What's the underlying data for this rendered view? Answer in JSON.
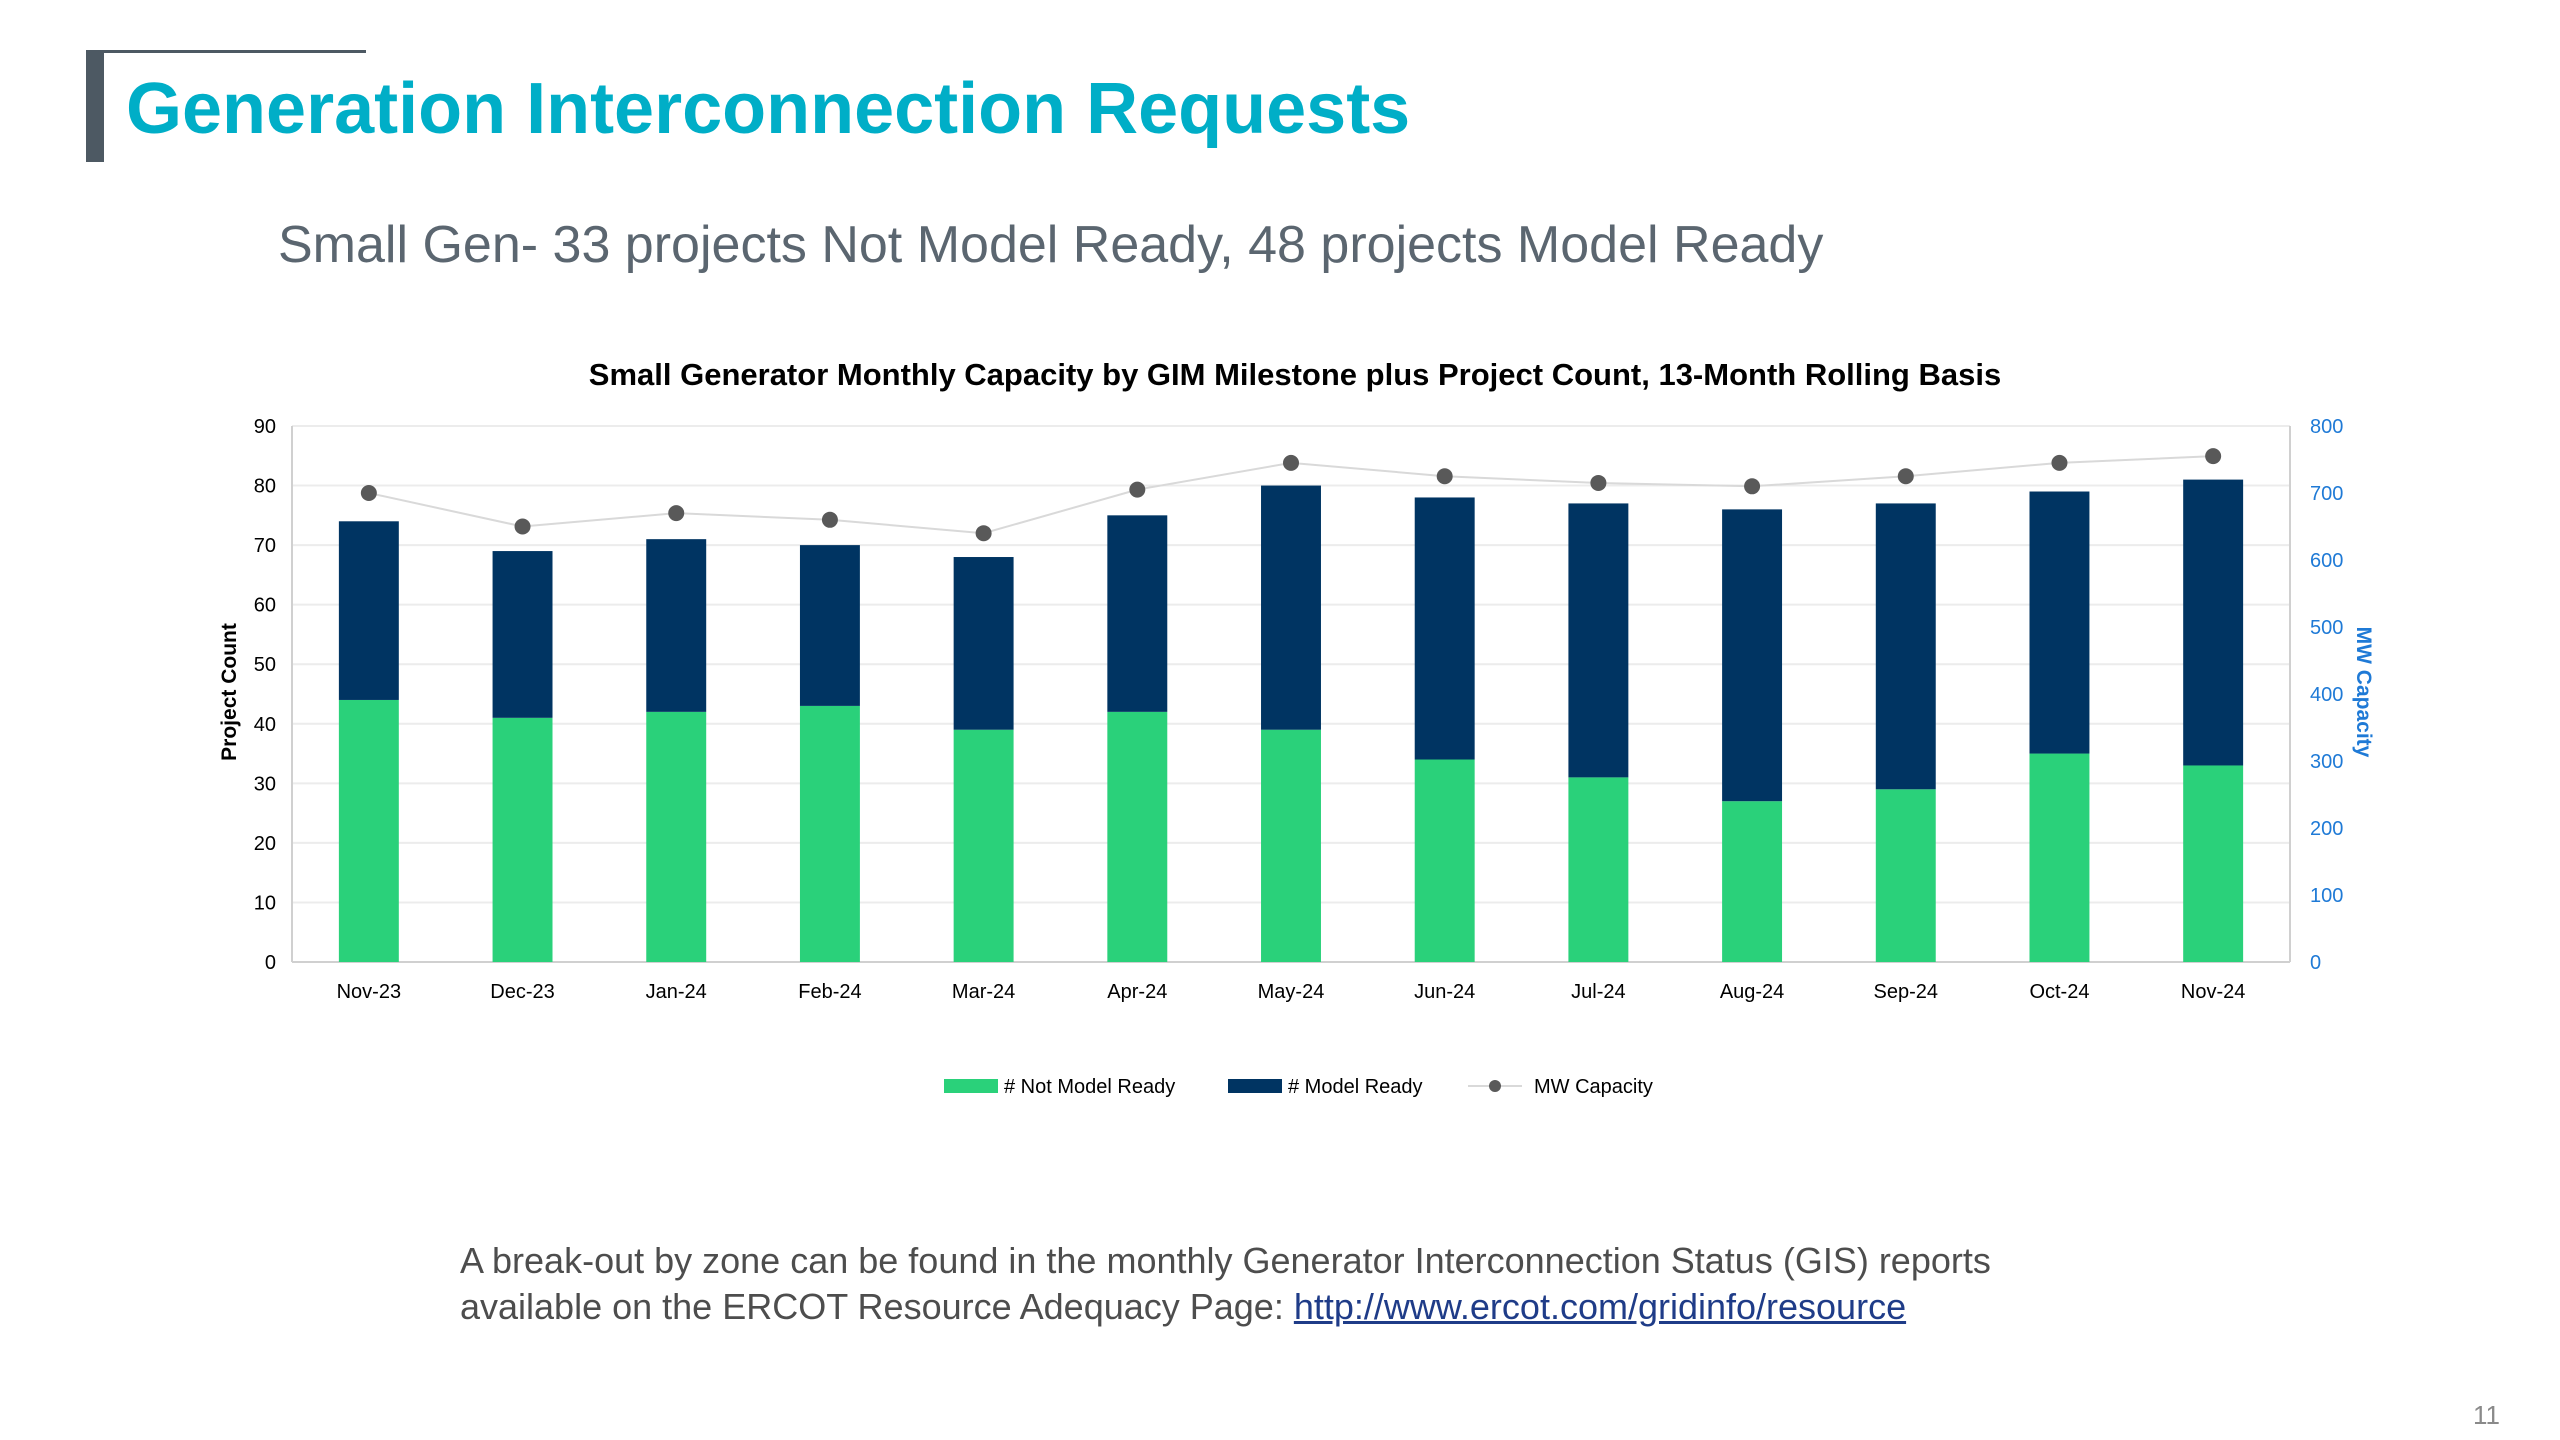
{
  "slide": {
    "title": "Generation Interconnection Requests",
    "subtitle": "Small Gen- 33 projects Not Model Ready, 48 projects Model Ready",
    "note_text": "A break-out by zone can be found in the monthly Generator Interconnection Status (GIS) reports available on the ERCOT Resource Adequacy Page: ",
    "note_link": "http://www.ercot.com/gridinfo/resource",
    "page_number": "11"
  },
  "colors": {
    "title": "#00aec7",
    "not_model_ready": "#2ad17a",
    "model_ready": "#003462",
    "mw_capacity": "#595959",
    "right_axis": "#1f7ad6"
  },
  "chart_data": {
    "type": "bar",
    "title": "Small Generator Monthly Capacity by GIM Milestone plus Project Count, 13-Month Rolling Basis",
    "ylabel": "Project Count",
    "y2label": "MW Capacity",
    "ylim": [
      0,
      90
    ],
    "y2lim": [
      0,
      800
    ],
    "yticks": [
      "0",
      "10",
      "20",
      "30",
      "40",
      "50",
      "60",
      "70",
      "80",
      "90"
    ],
    "y2ticks": [
      "0",
      "100",
      "200",
      "300",
      "400",
      "500",
      "600",
      "700",
      "800"
    ],
    "categories": [
      "Nov-23",
      "Dec-23",
      "Jan-24",
      "Feb-24",
      "Mar-24",
      "Apr-24",
      "May-24",
      "Jun-24",
      "Jul-24",
      "Aug-24",
      "Sep-24",
      "Oct-24",
      "Nov-24"
    ],
    "stacked": true,
    "grid": true,
    "legend": "bottom",
    "series": [
      {
        "name": "# Not Model Ready",
        "type": "bar",
        "axis": "left",
        "values": [
          44,
          41,
          42,
          43,
          39,
          42,
          39,
          34,
          31,
          27,
          29,
          35,
          33
        ]
      },
      {
        "name": "# Model Ready",
        "type": "bar",
        "axis": "left",
        "values": [
          30,
          28,
          29,
          27,
          29,
          33,
          41,
          44,
          46,
          49,
          48,
          44,
          48
        ]
      },
      {
        "name": "MW Capacity",
        "type": "line",
        "axis": "right",
        "values": [
          700,
          650,
          670,
          660,
          640,
          705,
          745,
          725,
          715,
          710,
          725,
          745,
          755
        ]
      }
    ]
  }
}
